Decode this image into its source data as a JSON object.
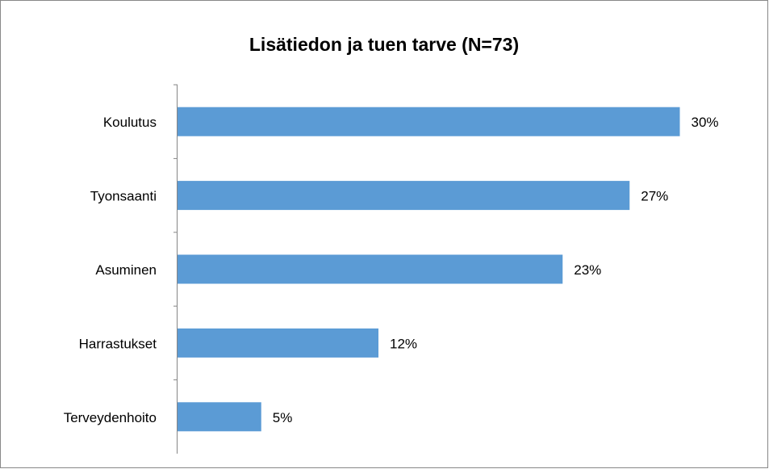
{
  "chart_data": {
    "type": "bar",
    "orientation": "horizontal",
    "title": "Lisätiedon ja tuen tarve (N=73)",
    "categories": [
      "Koulutus",
      "Tyonsaanti",
      "Asuminen",
      "Harrastukset",
      "Terveydenhoito"
    ],
    "values": [
      30,
      27,
      23,
      12,
      5
    ],
    "value_labels": [
      "30%",
      "27%",
      "23%",
      "12%",
      "5%"
    ],
    "color": "#5b9bd5"
  }
}
